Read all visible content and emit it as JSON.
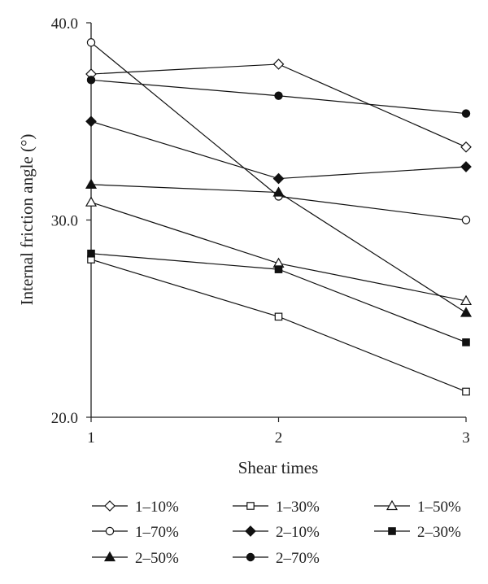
{
  "chart_data": {
    "type": "line",
    "xlabel": "Shear times",
    "ylabel": "Internal friction angle (°)",
    "x": [
      1,
      2,
      3
    ],
    "xlim": [
      1,
      3
    ],
    "ylim": [
      20.0,
      40.0
    ],
    "x_ticks": [
      "1",
      "2",
      "3"
    ],
    "y_ticks": [
      "20.0",
      "30.0",
      "40.0"
    ],
    "grid": false,
    "legend_position": "bottom",
    "series": [
      {
        "name": "1–10%",
        "marker": "diamond-open",
        "values": [
          37.4,
          37.9,
          33.7
        ]
      },
      {
        "name": "1–30%",
        "marker": "square-open",
        "values": [
          28.0,
          25.1,
          21.3
        ]
      },
      {
        "name": "1–50%",
        "marker": "triangle-open",
        "values": [
          30.9,
          27.8,
          25.9
        ]
      },
      {
        "name": "1–70%",
        "marker": "circle-open",
        "values": [
          39.0,
          31.2,
          30.0
        ]
      },
      {
        "name": "2–10%",
        "marker": "diamond-filled",
        "values": [
          35.0,
          32.1,
          32.7
        ]
      },
      {
        "name": "2–30%",
        "marker": "square-filled",
        "values": [
          28.3,
          27.5,
          23.8
        ]
      },
      {
        "name": "2–50%",
        "marker": "triangle-filled",
        "values": [
          31.8,
          31.4,
          25.3
        ]
      },
      {
        "name": "2–70%",
        "marker": "circle-filled",
        "values": [
          37.1,
          36.3,
          35.4
        ]
      }
    ]
  },
  "legend_order": [
    0,
    3,
    6,
    1,
    4,
    7,
    2,
    5
  ]
}
